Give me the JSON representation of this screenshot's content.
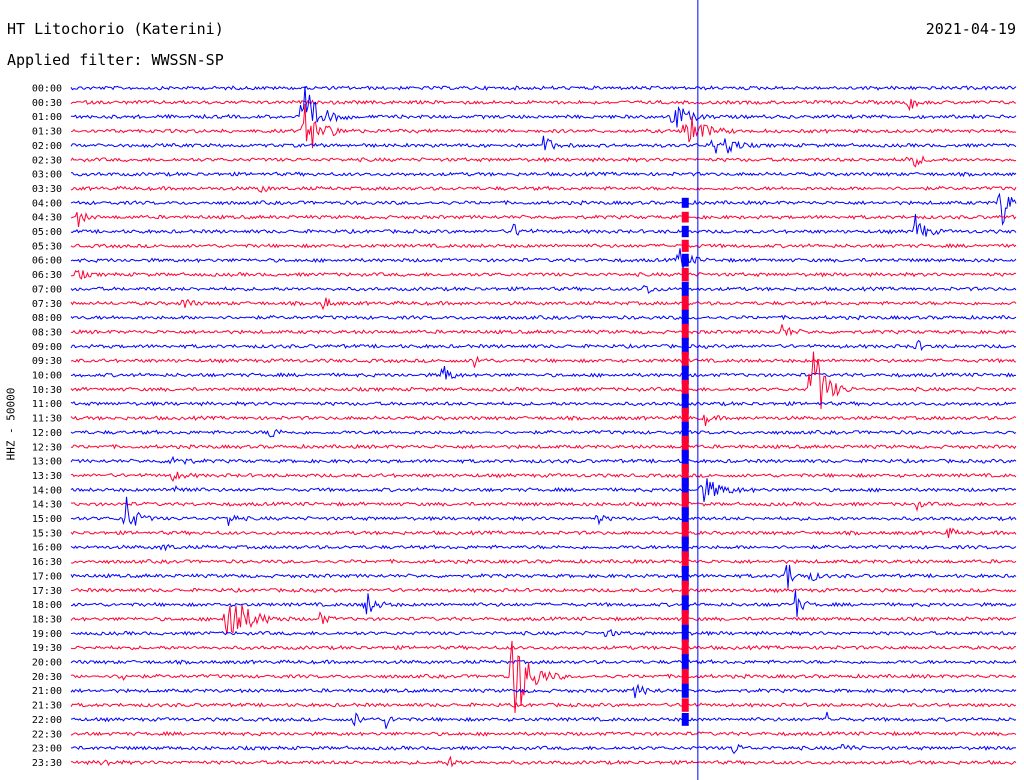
{
  "header": {
    "station": "HT Litochorio (Katerini)",
    "filter": "Applied filter: WWSSN-SP",
    "date": "2021-04-19"
  },
  "chart_data": {
    "type": "line",
    "title": "HT Litochorio (Katerini)",
    "subtitle": "Applied filter: WWSSN-SP",
    "ylabel": "HHZ - 50000",
    "xlabel": "",
    "grid": false,
    "legend": "none",
    "colors": {
      "odd_rows": "#0000ff",
      "even_rows": "#ff0033",
      "marker": "#0000ff"
    },
    "y_ticks": [
      "00:00",
      "00:30",
      "01:00",
      "01:30",
      "02:00",
      "02:30",
      "03:00",
      "03:30",
      "04:00",
      "04:30",
      "05:00",
      "05:30",
      "06:00",
      "06:30",
      "07:00",
      "07:30",
      "08:00",
      "08:30",
      "09:00",
      "09:30",
      "10:00",
      "10:30",
      "11:00",
      "11:30",
      "12:00",
      "12:30",
      "13:00",
      "13:30",
      "14:00",
      "14:30",
      "15:00",
      "15:30",
      "16:00",
      "16:30",
      "17:00",
      "17:30",
      "18:00",
      "18:30",
      "19:00",
      "19:30",
      "20:00",
      "20:30",
      "21:00",
      "21:30",
      "22:00",
      "22:30",
      "23:00",
      "23:30"
    ],
    "x_range_minutes": [
      0,
      30
    ],
    "current_time_marker_minute": 19.9,
    "events": [
      {
        "row": 1,
        "minute": 26.6,
        "amp": 10,
        "dur": 2
      },
      {
        "row": 2,
        "minute": 7.3,
        "amp": 40,
        "dur": 5
      },
      {
        "row": 2,
        "minute": 19.1,
        "amp": 20,
        "dur": 4
      },
      {
        "row": 3,
        "minute": 19.5,
        "amp": 25,
        "dur": 5
      },
      {
        "row": 3,
        "minute": 7.4,
        "amp": 30,
        "dur": 5
      },
      {
        "row": 4,
        "minute": 15.0,
        "amp": 10,
        "dur": 3
      },
      {
        "row": 4,
        "minute": 20.4,
        "amp": 12,
        "dur": 3
      },
      {
        "row": 4,
        "minute": 20.8,
        "amp": 10,
        "dur": 3
      },
      {
        "row": 5,
        "minute": 26.6,
        "amp": 12,
        "dur": 3
      },
      {
        "row": 7,
        "minute": 6.0,
        "amp": 5,
        "dur": 2
      },
      {
        "row": 8,
        "minute": 29.5,
        "amp": 40,
        "dur": 2
      },
      {
        "row": 9,
        "minute": 0.2,
        "amp": 12,
        "dur": 2
      },
      {
        "row": 10,
        "minute": 26.8,
        "amp": 18,
        "dur": 3
      },
      {
        "row": 10,
        "minute": 14.0,
        "amp": 8,
        "dur": 3
      },
      {
        "row": 12,
        "minute": 19.3,
        "amp": 15,
        "dur": 3
      },
      {
        "row": 13,
        "minute": 0.2,
        "amp": 8,
        "dur": 2
      },
      {
        "row": 14,
        "minute": 18.2,
        "amp": 10,
        "dur": 2
      },
      {
        "row": 15,
        "minute": 3.6,
        "amp": 8,
        "dur": 2
      },
      {
        "row": 15,
        "minute": 8.0,
        "amp": 8,
        "dur": 2
      },
      {
        "row": 17,
        "minute": 22.5,
        "amp": 10,
        "dur": 3
      },
      {
        "row": 18,
        "minute": 26.8,
        "amp": 8,
        "dur": 2
      },
      {
        "row": 19,
        "minute": 12.8,
        "amp": 8,
        "dur": 2
      },
      {
        "row": 20,
        "minute": 11.8,
        "amp": 18,
        "dur": 2
      },
      {
        "row": 21,
        "minute": 23.5,
        "amp": 60,
        "dur": 4
      },
      {
        "row": 23,
        "minute": 20.1,
        "amp": 8,
        "dur": 2
      },
      {
        "row": 24,
        "minute": 6.3,
        "amp": 10,
        "dur": 2
      },
      {
        "row": 26,
        "minute": 3.2,
        "amp": 10,
        "dur": 3
      },
      {
        "row": 27,
        "minute": 3.2,
        "amp": 6,
        "dur": 3
      },
      {
        "row": 28,
        "minute": 3.3,
        "amp": 6,
        "dur": 3
      },
      {
        "row": 28,
        "minute": 20.0,
        "amp": 15,
        "dur": 6
      },
      {
        "row": 29,
        "minute": 26.8,
        "amp": 6,
        "dur": 2
      },
      {
        "row": 30,
        "minute": 1.7,
        "amp": 28,
        "dur": 3
      },
      {
        "row": 30,
        "minute": 5.0,
        "amp": 8,
        "dur": 2
      },
      {
        "row": 30,
        "minute": 16.7,
        "amp": 6,
        "dur": 2
      },
      {
        "row": 31,
        "minute": 27.8,
        "amp": 8,
        "dur": 2
      },
      {
        "row": 32,
        "minute": 2.9,
        "amp": 5,
        "dur": 2
      },
      {
        "row": 34,
        "minute": 22.7,
        "amp": 22,
        "dur": 2
      },
      {
        "row": 34,
        "minute": 23.5,
        "amp": 6,
        "dur": 2
      },
      {
        "row": 36,
        "minute": 9.3,
        "amp": 18,
        "dur": 3
      },
      {
        "row": 36,
        "minute": 23.0,
        "amp": 15,
        "dur": 2
      },
      {
        "row": 37,
        "minute": 4.9,
        "amp": 40,
        "dur": 6
      },
      {
        "row": 37,
        "minute": 7.9,
        "amp": 8,
        "dur": 2
      },
      {
        "row": 38,
        "minute": 17.0,
        "amp": 6,
        "dur": 2
      },
      {
        "row": 41,
        "minute": 14.0,
        "amp": 60,
        "dur": 5
      },
      {
        "row": 41,
        "minute": 1.6,
        "amp": 5,
        "dur": 2
      },
      {
        "row": 42,
        "minute": 17.9,
        "amp": 6,
        "dur": 4
      },
      {
        "row": 44,
        "minute": 9.0,
        "amp": 8,
        "dur": 2
      },
      {
        "row": 44,
        "minute": 10.0,
        "amp": 8,
        "dur": 2
      },
      {
        "row": 44,
        "minute": 24.0,
        "amp": 6,
        "dur": 2
      },
      {
        "row": 46,
        "minute": 21.0,
        "amp": 8,
        "dur": 2
      },
      {
        "row": 46,
        "minute": 24.5,
        "amp": 8,
        "dur": 2
      },
      {
        "row": 47,
        "minute": 1.0,
        "amp": 6,
        "dur": 2
      },
      {
        "row": 47,
        "minute": 12.0,
        "amp": 6,
        "dur": 2
      }
    ],
    "big_quake": {
      "start_row": 8,
      "end_row": 44,
      "minute": 19.5,
      "peak_row": 28
    }
  }
}
